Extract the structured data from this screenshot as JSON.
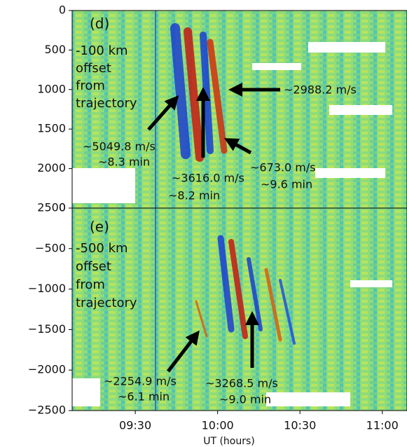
{
  "chart_data": [
    {
      "type": "heatmap",
      "panel_label": "(d)",
      "note": [
        "-100 km",
        "offset",
        "from",
        "trajectory"
      ],
      "annotations": [
        "~2988.2 m/s",
        "~5049.8 m/s",
        "~8.3 min",
        "~3616.0 m/s",
        "~8.2 min",
        "~673.0 m/s",
        "~9.6 min"
      ],
      "xlim": [
        547,
        669
      ],
      "ylim": [
        2500,
        0
      ],
      "yticks": [
        0,
        500,
        1000,
        1500,
        2000,
        2500
      ]
    },
    {
      "type": "heatmap",
      "panel_label": "(e)",
      "note": [
        "-500 km",
        "offset",
        "from",
        "trajectory"
      ],
      "annotations": [
        "~2254.9 m/s",
        "~6.1 min",
        "~3268.5 m/s",
        "~9.0 min"
      ],
      "xlabel": "UT (hours)",
      "xlim": [
        547,
        669
      ],
      "xticks": [
        {
          "value": 570,
          "label": "09:30"
        },
        {
          "value": 600,
          "label": "10:00"
        },
        {
          "value": 630,
          "label": "10:30"
        },
        {
          "value": 660,
          "label": "11:00"
        }
      ],
      "ylim": [
        -2500,
        0
      ],
      "yticks": [
        0,
        {
          "value": -500,
          "label": "−500"
        },
        {
          "value": -1000,
          "label": "−1000"
        },
        {
          "value": -1500,
          "label": "−1500"
        },
        {
          "value": -2000,
          "label": "−2000"
        },
        {
          "value": -2500,
          "label": "−2500"
        }
      ]
    }
  ]
}
